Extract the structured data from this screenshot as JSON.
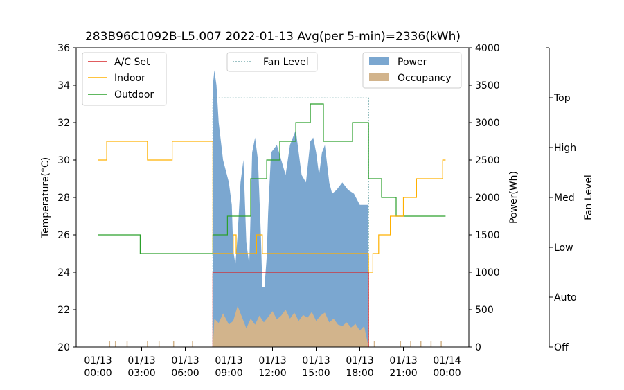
{
  "chart_data": {
    "type": "line+area",
    "title": "283B96C1092B-L5.007 2022-01-13 Avg(per 5-min)=2336(kWh)",
    "xlabel": "",
    "ylabel_left": "Temperature(°C)",
    "ylabel_right": "Power(Wh)",
    "ylabel_fan": "Fan Level",
    "x_range_hours": [
      -1.5,
      25.5
    ],
    "ylim_temperature": [
      20,
      36
    ],
    "ylim_power": [
      0,
      4000
    ],
    "yticks_temperature": [
      "20",
      "22",
      "24",
      "26",
      "28",
      "30",
      "32",
      "34",
      "36"
    ],
    "yticks_power": [
      "0",
      "500",
      "1000",
      "1500",
      "2000",
      "2500",
      "3000",
      "3500",
      "4000"
    ],
    "fan_levels": [
      "Off",
      "Auto",
      "Low",
      "Med",
      "High",
      "Top"
    ],
    "xticks": [
      {
        "h": 0,
        "line1": "01/13",
        "line2": "00:00"
      },
      {
        "h": 3,
        "line1": "01/13",
        "line2": "03:00"
      },
      {
        "h": 6,
        "line1": "01/13",
        "line2": "06:00"
      },
      {
        "h": 9,
        "line1": "01/13",
        "line2": "09:00"
      },
      {
        "h": 12,
        "line1": "01/13",
        "line2": "12:00"
      },
      {
        "h": 15,
        "line1": "01/13",
        "line2": "15:00"
      },
      {
        "h": 18,
        "line1": "01/13",
        "line2": "18:00"
      },
      {
        "h": 21,
        "line1": "01/13",
        "line2": "21:00"
      },
      {
        "h": 24,
        "line1": "01/14",
        "line2": "00:00"
      }
    ],
    "legend_left": [
      {
        "label": "A/C Set",
        "color": "#d62728"
      },
      {
        "label": "Indoor",
        "color": "#ffb000"
      },
      {
        "label": "Outdoor",
        "color": "#2ca02c"
      }
    ],
    "legend_center": [
      {
        "label": "Fan Level",
        "color": "#5f9ea0"
      }
    ],
    "legend_right": [
      {
        "label": "Power",
        "color": "#7ba7d0"
      },
      {
        "label": "Occupancy",
        "color": "#d2b48c"
      }
    ],
    "series": {
      "ac_set": {
        "name": "A/C Set",
        "color": "#d62728",
        "points": [
          [
            7.9,
            20
          ],
          [
            7.9,
            24
          ],
          [
            18.6,
            24
          ],
          [
            18.6,
            20
          ]
        ]
      },
      "indoor": {
        "name": "Indoor",
        "color": "#ffb000",
        "points": [
          [
            0,
            30
          ],
          [
            0.6,
            30
          ],
          [
            0.6,
            31
          ],
          [
            3.4,
            31
          ],
          [
            3.4,
            30
          ],
          [
            5.1,
            30
          ],
          [
            5.1,
            31
          ],
          [
            7.9,
            31
          ],
          [
            7.9,
            25
          ],
          [
            9.3,
            25
          ],
          [
            9.3,
            26
          ],
          [
            9.5,
            26
          ],
          [
            9.5,
            25
          ],
          [
            10.9,
            25
          ],
          [
            10.9,
            26
          ],
          [
            11.3,
            26
          ],
          [
            11.3,
            25
          ],
          [
            18.6,
            25
          ],
          [
            18.6,
            24
          ],
          [
            18.9,
            24
          ],
          [
            18.9,
            25
          ],
          [
            19.3,
            25
          ],
          [
            19.3,
            26
          ],
          [
            20.1,
            26
          ],
          [
            20.1,
            27
          ],
          [
            21,
            27
          ],
          [
            21,
            28
          ],
          [
            21.9,
            28
          ],
          [
            21.9,
            29
          ],
          [
            23.7,
            29
          ],
          [
            23.7,
            30
          ],
          [
            23.9,
            30
          ]
        ]
      },
      "outdoor": {
        "name": "Outdoor",
        "color": "#2ca02c",
        "points": [
          [
            0,
            26
          ],
          [
            2.9,
            26
          ],
          [
            2.9,
            25
          ],
          [
            7.9,
            25
          ],
          [
            7.9,
            26
          ],
          [
            8.9,
            26
          ],
          [
            8.9,
            27
          ],
          [
            10.5,
            27
          ],
          [
            10.5,
            29
          ],
          [
            11.6,
            29
          ],
          [
            11.6,
            30
          ],
          [
            12.5,
            30
          ],
          [
            12.5,
            31
          ],
          [
            13.6,
            31
          ],
          [
            13.6,
            32
          ],
          [
            14.6,
            32
          ],
          [
            14.6,
            33
          ],
          [
            15.5,
            33
          ],
          [
            15.5,
            31
          ],
          [
            17.5,
            31
          ],
          [
            17.5,
            32
          ],
          [
            18.6,
            32
          ],
          [
            18.6,
            29
          ],
          [
            19.5,
            29
          ],
          [
            19.5,
            28
          ],
          [
            20.5,
            28
          ],
          [
            20.5,
            27
          ],
          [
            23.9,
            27
          ]
        ]
      },
      "fan_level_power_equiv": {
        "name": "Fan Level",
        "color": "#5f9ea0",
        "points": [
          [
            7.9,
            0
          ],
          [
            7.9,
            3330
          ],
          [
            18.6,
            3330
          ],
          [
            18.6,
            0
          ]
        ]
      },
      "power": {
        "name": "Power",
        "color": "#7ba7d0",
        "points": [
          [
            7.9,
            0
          ],
          [
            7.9,
            3500
          ],
          [
            8.0,
            3700
          ],
          [
            8.15,
            3500
          ],
          [
            8.3,
            3000
          ],
          [
            8.6,
            2500
          ],
          [
            9.0,
            2200
          ],
          [
            9.2,
            1900
          ],
          [
            9.3,
            1300
          ],
          [
            9.45,
            1100
          ],
          [
            9.6,
            1500
          ],
          [
            9.8,
            2200
          ],
          [
            10.0,
            2500
          ],
          [
            10.2,
            1400
          ],
          [
            10.4,
            1100
          ],
          [
            10.6,
            2600
          ],
          [
            10.8,
            2800
          ],
          [
            11.0,
            2500
          ],
          [
            11.2,
            1500
          ],
          [
            11.3,
            800
          ],
          [
            11.45,
            800
          ],
          [
            11.6,
            1200
          ],
          [
            11.7,
            1800
          ],
          [
            11.9,
            2600
          ],
          [
            12.1,
            2650
          ],
          [
            12.3,
            2700
          ],
          [
            12.6,
            2500
          ],
          [
            12.9,
            2300
          ],
          [
            13.2,
            2700
          ],
          [
            13.6,
            2900
          ],
          [
            14.0,
            2300
          ],
          [
            14.3,
            2200
          ],
          [
            14.6,
            2750
          ],
          [
            14.8,
            2800
          ],
          [
            15.0,
            2600
          ],
          [
            15.2,
            2300
          ],
          [
            15.4,
            2600
          ],
          [
            15.6,
            2700
          ],
          [
            15.9,
            2200
          ],
          [
            16.1,
            2050
          ],
          [
            16.4,
            2100
          ],
          [
            16.8,
            2200
          ],
          [
            17.2,
            2100
          ],
          [
            17.6,
            2050
          ],
          [
            18.0,
            1900
          ],
          [
            18.3,
            1900
          ],
          [
            18.6,
            1900
          ],
          [
            18.6,
            0
          ]
        ]
      },
      "occupancy": {
        "name": "Occupancy",
        "color": "#d2b48c",
        "points": [
          [
            7.9,
            0
          ],
          [
            8.0,
            380
          ],
          [
            8.3,
            320
          ],
          [
            8.6,
            450
          ],
          [
            9.0,
            300
          ],
          [
            9.3,
            350
          ],
          [
            9.6,
            550
          ],
          [
            9.9,
            400
          ],
          [
            10.2,
            250
          ],
          [
            10.5,
            380
          ],
          [
            10.8,
            300
          ],
          [
            11.1,
            420
          ],
          [
            11.4,
            330
          ],
          [
            11.7,
            400
          ],
          [
            12.0,
            480
          ],
          [
            12.3,
            370
          ],
          [
            12.6,
            420
          ],
          [
            12.9,
            500
          ],
          [
            13.2,
            380
          ],
          [
            13.5,
            460
          ],
          [
            13.8,
            350
          ],
          [
            14.1,
            430
          ],
          [
            14.4,
            390
          ],
          [
            14.7,
            470
          ],
          [
            15.0,
            350
          ],
          [
            15.3,
            420
          ],
          [
            15.6,
            460
          ],
          [
            15.9,
            330
          ],
          [
            16.2,
            380
          ],
          [
            16.5,
            300
          ],
          [
            16.8,
            280
          ],
          [
            17.1,
            330
          ],
          [
            17.4,
            260
          ],
          [
            17.7,
            310
          ],
          [
            18.0,
            220
          ],
          [
            18.3,
            280
          ],
          [
            18.6,
            0
          ]
        ]
      },
      "occupancy_spikes_hours": [
        0.8,
        1.2,
        2.0,
        3.4,
        4.2,
        5.2,
        6.5,
        19.0,
        20.8,
        21.5,
        22.2,
        22.9,
        23.6
      ]
    }
  }
}
